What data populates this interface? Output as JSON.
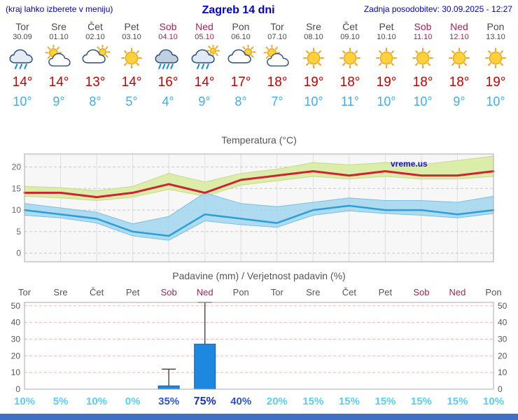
{
  "header": {
    "left_note": "(kraj lahko izberete v meniju)",
    "title": "Zagreb 14 dni",
    "updated": "Zadnja posodobitev: 30.09.2025 - 12:27"
  },
  "colors": {
    "accent": "#0000cc",
    "temp_max": "#cc0000",
    "temp_min": "#3daef0",
    "weekday": "#4a4a4a",
    "weekend": "#aa2255",
    "bar_fill": "#1e88e0",
    "scrollbar": "#3e71c4"
  },
  "days": [
    {
      "name": "Tor",
      "date": "30.09",
      "weekend": false,
      "icon": "rain",
      "tmax": "14°",
      "tmin": "10°"
    },
    {
      "name": "Sre",
      "date": "01.10",
      "weekend": false,
      "icon": "partly-sunny",
      "tmax": "14°",
      "tmin": "9°"
    },
    {
      "name": "Čet",
      "date": "02.10",
      "weekend": false,
      "icon": "mostly-cloudy",
      "tmax": "13°",
      "tmin": "8°"
    },
    {
      "name": "Pet",
      "date": "03.10",
      "weekend": false,
      "icon": "sunny",
      "tmax": "14°",
      "tmin": "5°"
    },
    {
      "name": "Sob",
      "date": "04.10",
      "weekend": true,
      "icon": "rain-heavy",
      "tmax": "16°",
      "tmin": "4°"
    },
    {
      "name": "Ned",
      "date": "05.10",
      "weekend": true,
      "icon": "rain-showers",
      "tmax": "14°",
      "tmin": "9°"
    },
    {
      "name": "Pon",
      "date": "06.10",
      "weekend": false,
      "icon": "mostly-cloudy",
      "tmax": "17°",
      "tmin": "8°"
    },
    {
      "name": "Tor",
      "date": "07.10",
      "weekend": false,
      "icon": "partly-sunny",
      "tmax": "18°",
      "tmin": "7°"
    },
    {
      "name": "Sre",
      "date": "08.10",
      "weekend": false,
      "icon": "sunny",
      "tmax": "19°",
      "tmin": "10°"
    },
    {
      "name": "Čet",
      "date": "09.10",
      "weekend": false,
      "icon": "sunny",
      "tmax": "18°",
      "tmin": "11°"
    },
    {
      "name": "Pet",
      "date": "10.10",
      "weekend": false,
      "icon": "sunny",
      "tmax": "19°",
      "tmin": "10°"
    },
    {
      "name": "Sob",
      "date": "11.10",
      "weekend": true,
      "icon": "sunny",
      "tmax": "18°",
      "tmin": "10°"
    },
    {
      "name": "Ned",
      "date": "12.10",
      "weekend": true,
      "icon": "sunny",
      "tmax": "18°",
      "tmin": "9°"
    },
    {
      "name": "Pon",
      "date": "13.10",
      "weekend": false,
      "icon": "sunny",
      "tmax": "19°",
      "tmin": "10°"
    }
  ],
  "chart_data": [
    {
      "type": "line",
      "title": "Temperatura (°C)",
      "x_categories": [
        "Tor",
        "Sre",
        "Čet",
        "Pet",
        "Sob",
        "Ned",
        "Pon",
        "Tor",
        "Sre",
        "Čet",
        "Pet",
        "Sob",
        "Ned",
        "Pon"
      ],
      "ylim": [
        -2,
        23
      ],
      "yticks": [
        0,
        5,
        10,
        15,
        20
      ],
      "grid": true,
      "watermark": "vreme.us",
      "series": [
        {
          "name": "temp-max",
          "color": "#ce2333",
          "width": 3,
          "values": [
            14,
            14,
            13,
            14,
            16,
            14,
            17,
            18,
            19,
            18,
            19,
            18,
            18,
            19
          ]
        },
        {
          "name": "temp-min",
          "color": "#2b9fd8",
          "width": 2.5,
          "values": [
            10,
            9,
            8,
            5,
            4,
            9,
            8,
            7,
            10,
            11,
            10,
            10,
            9,
            10
          ]
        }
      ],
      "bands": [
        {
          "name": "max-range",
          "color": "#dcedaa",
          "opacity": 1,
          "edge": "#c6db85",
          "hi": [
            15.5,
            15.2,
            14.5,
            15.5,
            18.5,
            16.5,
            18.5,
            19.5,
            21,
            20.5,
            21,
            20.5,
            21.5,
            22.5
          ],
          "lo": [
            13.2,
            12.8,
            12.2,
            13,
            14.8,
            13.2,
            15.8,
            16.8,
            17.8,
            17.2,
            17.8,
            17.2,
            17.2,
            17.8
          ]
        },
        {
          "name": "min-range",
          "color": "#9fd4ef",
          "opacity": 0.82,
          "edge": "#79c1e6",
          "hi": [
            11.5,
            10.5,
            9.5,
            6.8,
            8.5,
            14,
            11.5,
            10.8,
            11.8,
            12.8,
            12.2,
            12.2,
            11.8,
            13.2
          ],
          "lo": [
            8.8,
            8.2,
            7,
            4,
            3,
            7.5,
            6.6,
            6,
            8.8,
            9.8,
            9.2,
            8.8,
            8.2,
            9.2
          ]
        }
      ]
    },
    {
      "type": "bar",
      "title": "Padavine (mm) / Verjetnost padavin (%)",
      "categories": [
        "Tor",
        "Sre",
        "Čet",
        "Pet",
        "Sob",
        "Ned",
        "Pon",
        "Tor",
        "Sre",
        "Čet",
        "Pet",
        "Sob",
        "Ned",
        "Pon"
      ],
      "weekend": [
        false,
        false,
        false,
        false,
        true,
        true,
        false,
        false,
        false,
        false,
        false,
        true,
        true,
        false
      ],
      "values": [
        0,
        0,
        0,
        0,
        2,
        27,
        0,
        0,
        0,
        0,
        0,
        0,
        0,
        0
      ],
      "range_max": [
        0,
        0,
        0,
        0,
        12,
        52,
        0,
        0,
        0,
        0,
        0,
        0,
        0,
        0
      ],
      "probabilities": [
        "10%",
        "5%",
        "10%",
        "0%",
        "35%",
        "75%",
        "40%",
        "20%",
        "15%",
        "15%",
        "15%",
        "15%",
        "15%",
        "10%"
      ],
      "prob_levels": [
        "low",
        "low",
        "low",
        "low",
        "mid",
        "high",
        "mid",
        "low",
        "low",
        "low",
        "low",
        "low",
        "low",
        "low"
      ],
      "ylim": [
        0,
        52
      ],
      "yticks": [
        0,
        10,
        20,
        30,
        40,
        50
      ],
      "bar_color": "#1e88e0",
      "bar_border": "#0f5fa8"
    }
  ]
}
